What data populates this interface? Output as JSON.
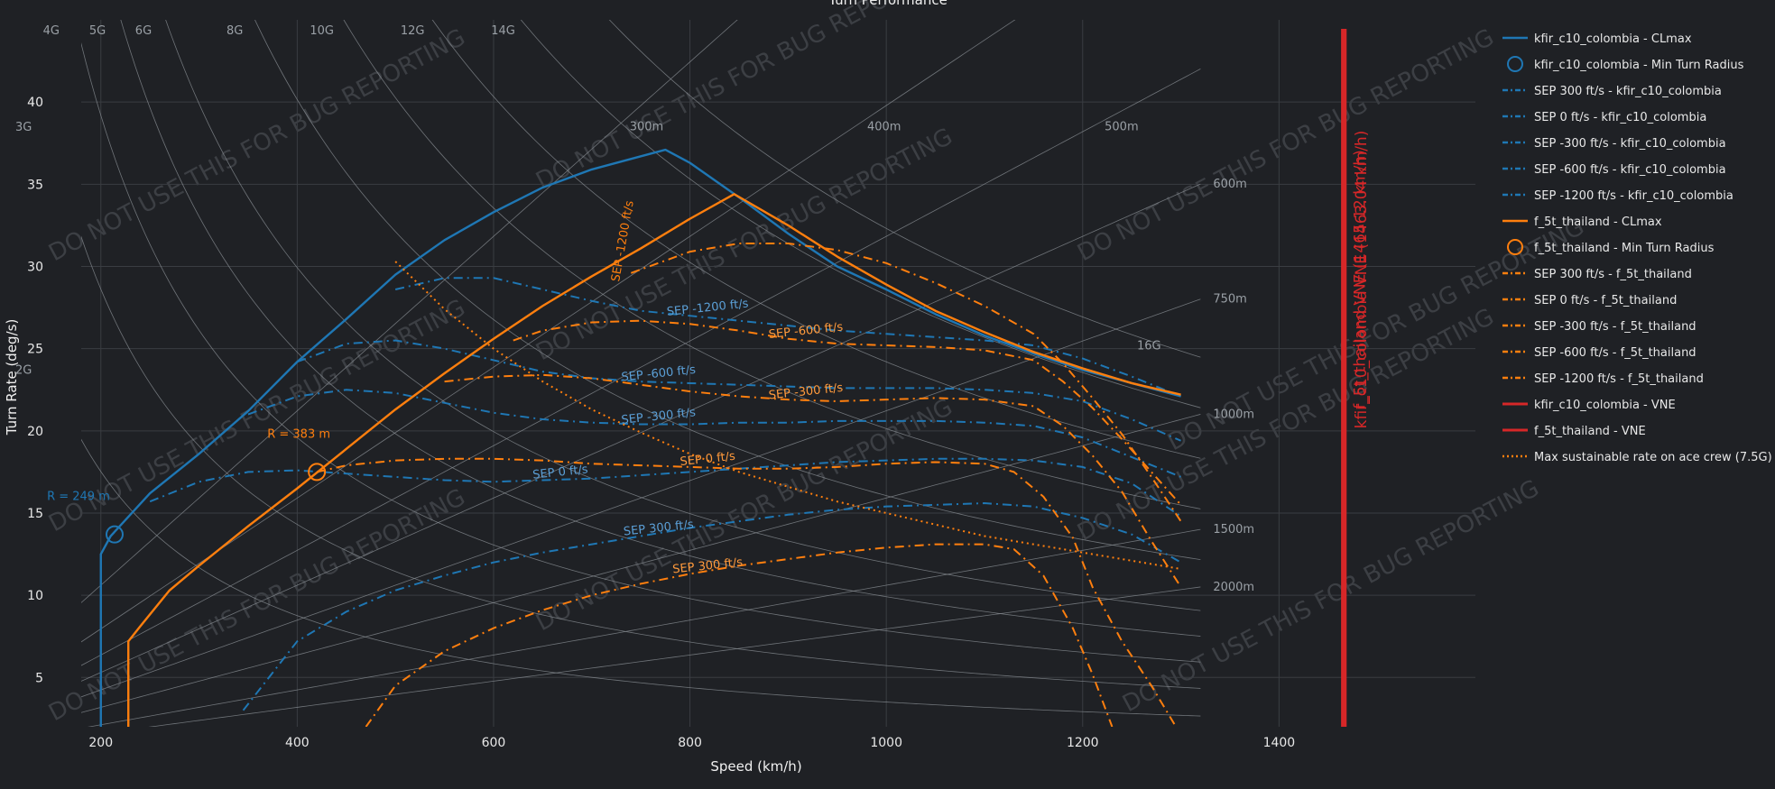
{
  "chart_data": {
    "type": "line",
    "title": "Turn Performance",
    "xlabel": "Speed (km/h)",
    "ylabel": "Turn Rate (deg/s)",
    "xlim": [
      180,
      1600
    ],
    "ylim": [
      2,
      45
    ],
    "x_ticks": [
      200,
      400,
      600,
      800,
      1000,
      1200,
      1400
    ],
    "y_ticks": [
      5,
      10,
      15,
      20,
      25,
      30,
      35,
      40
    ],
    "grid": true,
    "legend_position": "right",
    "colors": {
      "blue": "#1f77b4",
      "orange": "#ff7f0e",
      "red": "#d62728",
      "bg": "#1f2125"
    },
    "watermark": "DO NOT USE THIS FOR BUG REPORTING",
    "series": [
      {
        "name": "kfir_c10_colombia - CLmax",
        "style": "solid",
        "color": "#1f77b4",
        "x": [
          200,
          200,
          210,
          250,
          300,
          350,
          400,
          450,
          500,
          550,
          600,
          650,
          700,
          750,
          775,
          800,
          850,
          900,
          950,
          1000,
          1050,
          1100,
          1150,
          1200,
          1250,
          1300
        ],
        "y": [
          2,
          12.5,
          13.6,
          16.2,
          18.6,
          21.2,
          24.2,
          26.8,
          29.5,
          31.6,
          33.3,
          34.8,
          35.9,
          36.7,
          37.1,
          36.3,
          34.2,
          32.0,
          30.0,
          28.6,
          27.1,
          25.8,
          24.7,
          23.7,
          22.9,
          22.1
        ]
      },
      {
        "name": "kfir_c10_colombia - Min Turn Radius",
        "style": "marker",
        "color": "#1f77b4",
        "x": [
          214
        ],
        "y": [
          13.7
        ],
        "label": "R = 249 m"
      },
      {
        "name": "SEP 300 ft/s - kfir_c10_colombia",
        "style": "dashdot",
        "color": "#1f77b4",
        "label": "SEP 300 ft/s",
        "x": [
          345,
          400,
          450,
          500,
          550,
          600,
          650,
          700,
          750,
          800,
          850,
          900,
          950,
          1000,
          1050,
          1100,
          1150,
          1200,
          1250,
          1300
        ],
        "y": [
          3.0,
          7.2,
          9.0,
          10.3,
          11.2,
          12.0,
          12.6,
          13.1,
          13.6,
          14.1,
          14.5,
          14.9,
          15.2,
          15.4,
          15.5,
          15.6,
          15.4,
          14.7,
          13.7,
          12.0
        ]
      },
      {
        "name": "SEP 0 ft/s - kfir_c10_colombia",
        "style": "dashdot",
        "color": "#1f77b4",
        "label": "SEP 0 ft/s",
        "x": [
          250,
          300,
          350,
          400,
          450,
          500,
          550,
          600,
          650,
          700,
          750,
          800,
          850,
          900,
          950,
          1000,
          1050,
          1100,
          1150,
          1200,
          1250,
          1300
        ],
        "y": [
          15.7,
          16.9,
          17.5,
          17.6,
          17.4,
          17.2,
          17.0,
          16.9,
          17.0,
          17.1,
          17.3,
          17.5,
          17.7,
          17.9,
          18.1,
          18.2,
          18.3,
          18.3,
          18.2,
          17.8,
          16.8,
          14.8
        ]
      },
      {
        "name": "SEP -300 ft/s - kfir_c10_colombia",
        "style": "dashdot",
        "color": "#1f77b4",
        "label": "SEP -300 ft/s",
        "x": [
          350,
          400,
          450,
          500,
          550,
          600,
          650,
          700,
          750,
          800,
          850,
          900,
          950,
          1000,
          1050,
          1100,
          1150,
          1200,
          1250,
          1300
        ],
        "y": [
          21.0,
          22.1,
          22.5,
          22.3,
          21.7,
          21.1,
          20.7,
          20.5,
          20.4,
          20.4,
          20.5,
          20.5,
          20.6,
          20.6,
          20.6,
          20.5,
          20.3,
          19.6,
          18.4,
          17.2
        ]
      },
      {
        "name": "SEP -600 ft/s - kfir_c10_colombia",
        "style": "dashdot",
        "color": "#1f77b4",
        "label": "SEP -600 ft/s",
        "x": [
          400,
          450,
          500,
          550,
          600,
          650,
          700,
          750,
          800,
          850,
          900,
          950,
          1000,
          1050,
          1100,
          1150,
          1200,
          1250,
          1300
        ],
        "y": [
          24.2,
          25.3,
          25.5,
          25.0,
          24.3,
          23.6,
          23.2,
          23.0,
          22.9,
          22.8,
          22.7,
          22.6,
          22.6,
          22.6,
          22.5,
          22.3,
          21.8,
          20.7,
          19.4
        ]
      },
      {
        "name": "SEP -1200 ft/s - kfir_c10_colombia",
        "style": "dashdot",
        "color": "#1f77b4",
        "label": "SEP -1200 ft/s",
        "x": [
          500,
          550,
          600,
          650,
          700,
          750,
          800,
          850,
          900,
          950,
          1000,
          1050,
          1100,
          1150,
          1200,
          1250,
          1300
        ],
        "y": [
          28.6,
          29.3,
          29.3,
          28.6,
          27.9,
          27.3,
          27.0,
          26.7,
          26.4,
          26.1,
          25.9,
          25.7,
          25.5,
          25.2,
          24.4,
          23.3,
          22.1
        ]
      },
      {
        "name": "f_5t_thailand - CLmax",
        "style": "solid",
        "color": "#ff7f0e",
        "x": [
          228,
          228,
          240,
          270,
          300,
          350,
          400,
          450,
          500,
          550,
          600,
          650,
          700,
          750,
          800,
          845,
          900,
          950,
          1000,
          1050,
          1100,
          1150,
          1200,
          1250,
          1300
        ],
        "y": [
          2,
          7.2,
          8.1,
          10.3,
          11.8,
          14.2,
          16.5,
          18.9,
          21.3,
          23.5,
          25.6,
          27.6,
          29.4,
          31.1,
          32.9,
          34.4,
          32.5,
          30.6,
          28.9,
          27.3,
          26.0,
          24.8,
          23.8,
          22.9,
          22.2
        ]
      },
      {
        "name": "f_5t_thailand - Min Turn Radius",
        "style": "marker",
        "color": "#ff7f0e",
        "x": [
          420
        ],
        "y": [
          17.5
        ],
        "label": "R = 383 m"
      },
      {
        "name": "SEP 300 ft/s - f_5t_thailand",
        "style": "dashdot",
        "color": "#ff7f0e",
        "label": "SEP 300 ft/s",
        "x": [
          470,
          500,
          550,
          600,
          650,
          700,
          750,
          800,
          850,
          900,
          950,
          1000,
          1050,
          1100,
          1130,
          1160,
          1190,
          1210,
          1230
        ],
        "y": [
          2,
          4.5,
          6.6,
          8.0,
          9.1,
          10.0,
          10.7,
          11.3,
          11.8,
          12.2,
          12.6,
          12.9,
          13.1,
          13.1,
          12.8,
          11.2,
          8.0,
          5.2,
          2
        ]
      },
      {
        "name": "SEP 0 ft/s - f_5t_thailand",
        "style": "dashdot",
        "color": "#ff7f0e",
        "label": "SEP 0 ft/s",
        "x": [
          420,
          450,
          500,
          550,
          600,
          650,
          700,
          750,
          800,
          850,
          900,
          950,
          1000,
          1050,
          1100,
          1130,
          1160,
          1190,
          1210,
          1240,
          1270,
          1295
        ],
        "y": [
          17.5,
          17.9,
          18.2,
          18.3,
          18.3,
          18.2,
          18.0,
          17.9,
          17.8,
          17.7,
          17.7,
          17.8,
          18.0,
          18.1,
          18.0,
          17.5,
          16.0,
          13.5,
          10.5,
          7.2,
          4.5,
          2
        ]
      },
      {
        "name": "SEP -300 ft/s - f_5t_thailand",
        "style": "dashdot",
        "color": "#ff7f0e",
        "label": "SEP -300 ft/s",
        "x": [
          550,
          600,
          650,
          700,
          750,
          800,
          850,
          900,
          950,
          1000,
          1050,
          1100,
          1150,
          1180,
          1210,
          1240,
          1270,
          1300
        ],
        "y": [
          23.0,
          23.3,
          23.4,
          23.2,
          22.8,
          22.4,
          22.1,
          21.9,
          21.8,
          21.9,
          22.0,
          21.9,
          21.5,
          20.3,
          18.5,
          16.3,
          13.3,
          10.5
        ]
      },
      {
        "name": "SEP -600 ft/s - f_5t_thailand",
        "style": "dashdot",
        "color": "#ff7f0e",
        "label": "SEP -600 ft/s",
        "x": [
          620,
          650,
          700,
          750,
          800,
          850,
          900,
          950,
          1000,
          1050,
          1100,
          1150,
          1180,
          1210,
          1240,
          1270,
          1300
        ],
        "y": [
          25.5,
          26.1,
          26.6,
          26.7,
          26.5,
          26.1,
          25.6,
          25.3,
          25.2,
          25.1,
          24.9,
          24.3,
          23.0,
          21.4,
          19.5,
          17.5,
          15.5
        ]
      },
      {
        "name": "SEP -1200 ft/s - f_5t_thailand",
        "style": "dashdot",
        "color": "#ff7f0e",
        "label": "SEP -1200 ft/s",
        "x": [
          740,
          800,
          850,
          900,
          950,
          1000,
          1050,
          1100,
          1150,
          1180,
          1210,
          1240,
          1270,
          1300
        ],
        "y": [
          29.6,
          30.9,
          31.4,
          31.4,
          31.0,
          30.2,
          29.0,
          27.6,
          25.9,
          24.1,
          22.0,
          19.8,
          17.2,
          14.5
        ]
      },
      {
        "name": "kfir_c10_colombia - VNE",
        "style": "vertical",
        "color": "#d62728",
        "x": [
          1465
        ],
        "label": "kfir_c10_colombia VNE (1463.04 km/h)"
      },
      {
        "name": "f_5t_thailand - VNE",
        "style": "vertical",
        "color": "#d62728",
        "x": [
          1467
        ],
        "label": "f_5t_thailand VNE (1465.12 km/h)"
      },
      {
        "name": "Max sustainable rate on ace crew (7.5G)",
        "style": "dotted",
        "color": "#ff7f0e",
        "x": [
          500,
          550,
          600,
          650,
          700,
          750,
          800,
          850,
          900,
          950,
          1000,
          1050,
          1100,
          1150,
          1200,
          1250,
          1300
        ],
        "y": [
          30.3,
          27.4,
          25.0,
          23.0,
          21.3,
          19.9,
          18.6,
          17.5,
          16.6,
          15.7,
          15.0,
          14.3,
          13.6,
          13.1,
          12.6,
          12.1,
          11.6
        ]
      }
    ],
    "g_lines": [
      {
        "label": "2G",
        "g": 2
      },
      {
        "label": "3G",
        "g": 3
      },
      {
        "label": "4G",
        "g": 4
      },
      {
        "label": "5G",
        "g": 5
      },
      {
        "label": "6G",
        "g": 6
      },
      {
        "label": "8G",
        "g": 8
      },
      {
        "label": "10G",
        "g": 10
      },
      {
        "label": "12G",
        "g": 12
      },
      {
        "label": "14G",
        "g": 14
      },
      {
        "label": "16G",
        "g": 16
      }
    ],
    "radius_lines": [
      {
        "label": "300m",
        "r": 300
      },
      {
        "label": "400m",
        "r": 400
      },
      {
        "label": "500m",
        "r": 500
      },
      {
        "label": "600m",
        "r": 600
      },
      {
        "label": "750m",
        "r": 750
      },
      {
        "label": "1000m",
        "r": 1000
      },
      {
        "label": "1500m",
        "r": 1500
      },
      {
        "label": "2000m",
        "r": 2000
      }
    ]
  }
}
